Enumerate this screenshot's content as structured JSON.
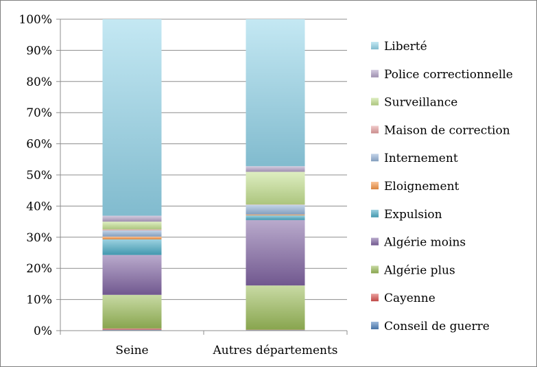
{
  "chart_data": {
    "type": "bar",
    "stacked": true,
    "percent": true,
    "categories": [
      "Seine",
      "Autres départements"
    ],
    "ylim": [
      0,
      100
    ],
    "yticks": [
      "0%",
      "10%",
      "20%",
      "30%",
      "40%",
      "50%",
      "60%",
      "70%",
      "80%",
      "90%",
      "100%"
    ],
    "grid": true,
    "legend_position": "right",
    "series": [
      {
        "name": "Conseil de guerre",
        "values": [
          0.3,
          0.2
        ],
        "color": "#4f81bd"
      },
      {
        "name": "Cayenne",
        "values": [
          0.4,
          0.1
        ],
        "color": "#d9534f"
      },
      {
        "name": "Algérie plus",
        "values": [
          10.8,
          14.2
        ],
        "color": "#9bbb59"
      },
      {
        "name": "Algérie moins",
        "values": [
          12.8,
          21.0
        ],
        "color": "#8064a2"
      },
      {
        "name": "Expulsion",
        "values": [
          5.0,
          1.5
        ],
        "color": "#4bacc6"
      },
      {
        "name": "Eloignement",
        "values": [
          0.9,
          0.3
        ],
        "color": "#f79646"
      },
      {
        "name": "Internement",
        "values": [
          2.0,
          3.1
        ],
        "color": "#95b3d7"
      },
      {
        "name": "Maison de correction",
        "values": [
          0.3,
          0.1
        ],
        "color": "#e6a0a0"
      },
      {
        "name": "Surveillance",
        "values": [
          2.5,
          10.5
        ],
        "color": "#c3e08f"
      },
      {
        "name": "Police correctionnelle",
        "values": [
          1.9,
          1.8
        ],
        "color": "#b3a2c7"
      },
      {
        "name": "Liberté",
        "values": [
          63.1,
          47.2
        ],
        "color": "#93d5ea"
      }
    ]
  }
}
